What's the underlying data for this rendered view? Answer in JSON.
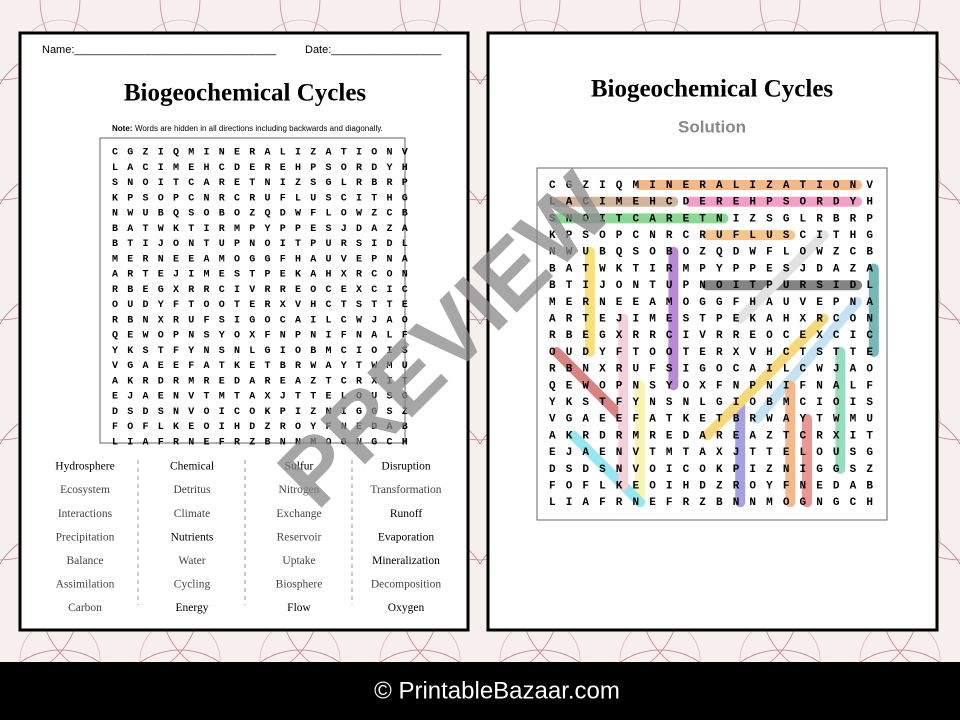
{
  "worksheet": {
    "name_label": "Name:_________________________________",
    "date_label": "Date:__________________",
    "title": "Biogeochemical Cycles",
    "note_label": "Note:",
    "note": "Words are hidden in all directions including backwards and diagonally.",
    "grid": [
      "CGZIQMINERALIZATIONV",
      "LACIMEHCDEREHPSORDYH",
      "SNOITCARETNIZSGLRBRP",
      "KPSOPCNRCRUFLUSCITHG",
      "NWUBQSOBOZQDWFLOWZCB",
      "BATWKTIRMPYPPESJDAZA",
      "BTIJONTUPNOITPURSIDL",
      "MERNEEAMOGGFHAUVEPNA",
      "ARTEJIMESTPEKAHXRCON",
      "RBEGXRRCIVRREOCEXCIC",
      "OUDYFTOOTERXVHCTSTTE",
      "RBNXRUFSIGOCAILCWJAO",
      "QEWOPNSYOXFNPNIFNALF",
      "YKSTFYNSNLGIOBMCIOIS",
      "VGAEEFATKETBRWAYTWMU",
      "AKRDRMREDAREAZTCRXIT",
      "EJAENVTMTAXJTTELOUSG",
      "DSDSNVOICOKPIZNIGGSZ",
      "FOFLKEOIHDZROYFNEDAB",
      "LIAFRNEFRZBNNMOGNGCH"
    ],
    "word_list": [
      [
        "Hydrosphere",
        "Ecosystem",
        "Interactions",
        "Precipitation",
        "Balance",
        "Assimilation",
        "Carbon"
      ],
      [
        "Chemical",
        "Detritus",
        "Climate",
        "Nutrients",
        "Water",
        "Cycling",
        "Energy"
      ],
      [
        "Sulfur",
        "Nitrogen",
        "Exchange",
        "Reservoir",
        "Uptake",
        "Biosphere",
        "Flow"
      ],
      [
        "Disruption",
        "Transformation",
        "Runoff",
        "Evaporation",
        "Mineralization",
        "Decomposition",
        "Oxygen"
      ]
    ]
  },
  "solution": {
    "title": "Biogeochemical Cycles",
    "subtitle": "Solution",
    "grid": [
      "CGZIQMINERALIZATIONV",
      "LACIMEHCDEREHPSORDYH",
      "SNOITCARETNIZSGLRBRP",
      "KPSOPCNRCRUFLUSCITHG",
      "NWUBQSOBOZQDWFLOWZCB",
      "BATWKTIRMPYPPESJDAZA",
      "BTIJONTUPNOITPURSIDL",
      "MERNEEAMOGGFHAUVEPNA",
      "ARTEJIMESTPEKAHXRCON",
      "RBEGXRRCIVRREOCEXCIC",
      "OUDYFTOOTERXVHCTSTTE",
      "RBNXRUFSIGOCAILCWJAO",
      "QEWOPNSYOXFNPNIFNALF",
      "YKSTFYNSNLGIOBMCIOIS",
      "VGAEEFATKETBRWAYTWMU",
      "AKRDRMREDAREAZTCRXIT",
      "EJAENVTMTAXJTTELOUSG",
      "DSDSNVOICOKPIZNIGGSZ",
      "FOFLKEOIHDZROYFNEDAB",
      "LIAFRNEFRZBNNMOGNGCH"
    ]
  },
  "watermark": "PREVIEW",
  "footer": "© PrintableBazaar.com"
}
